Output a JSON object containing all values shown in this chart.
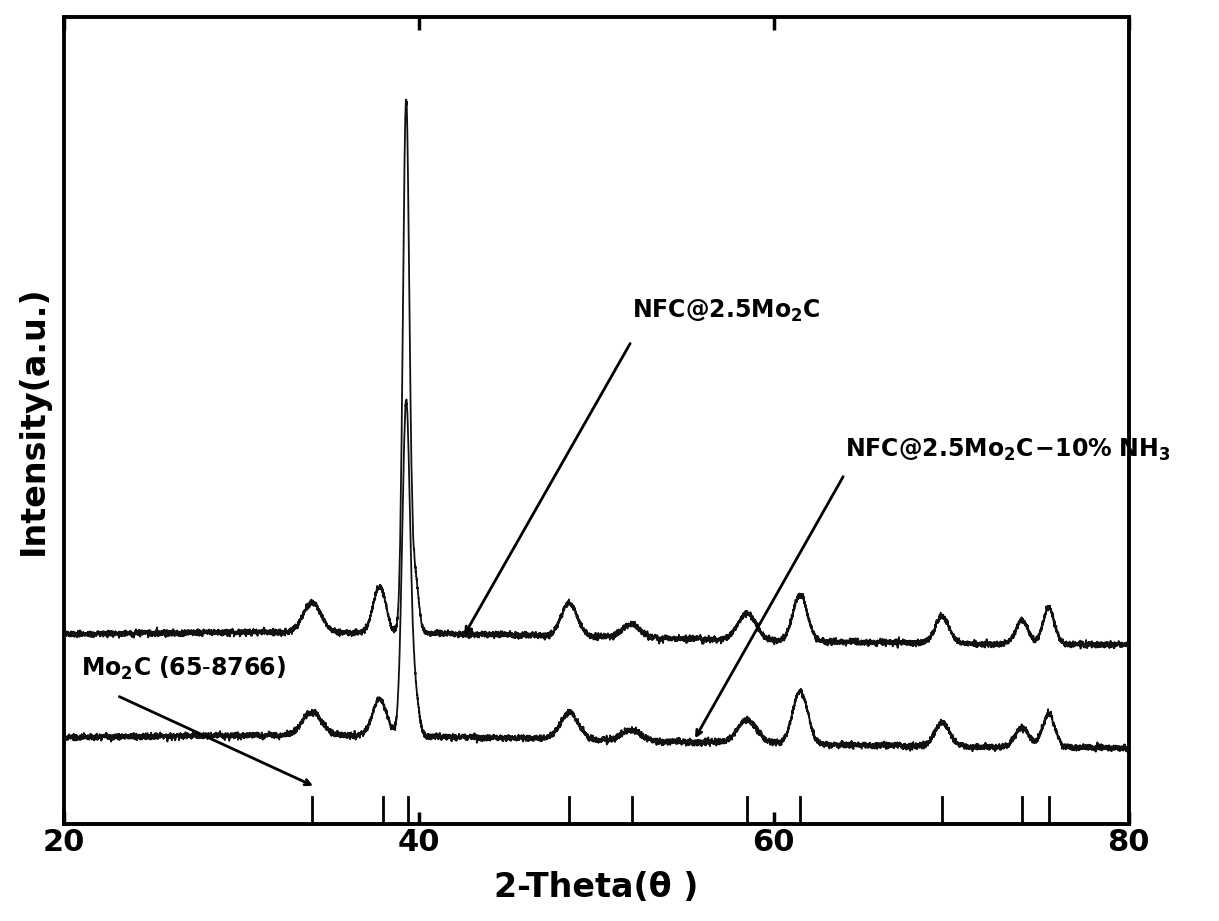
{
  "xlim": [
    20,
    80
  ],
  "xlabel": "2-Theta(θ )",
  "ylabel": "Intensity(a.u.)",
  "background_color": "#ffffff",
  "line_color": "#111111",
  "reference_lines": [
    34.0,
    38.0,
    39.4,
    48.5,
    52.0,
    58.5,
    61.5,
    69.5,
    74.0,
    75.5
  ],
  "label1": "NFC@2.5Mo₂C",
  "label2": "NFC@2.5Mo₂C-10% NH₃",
  "label3": "Mo₂C (65-8766)"
}
